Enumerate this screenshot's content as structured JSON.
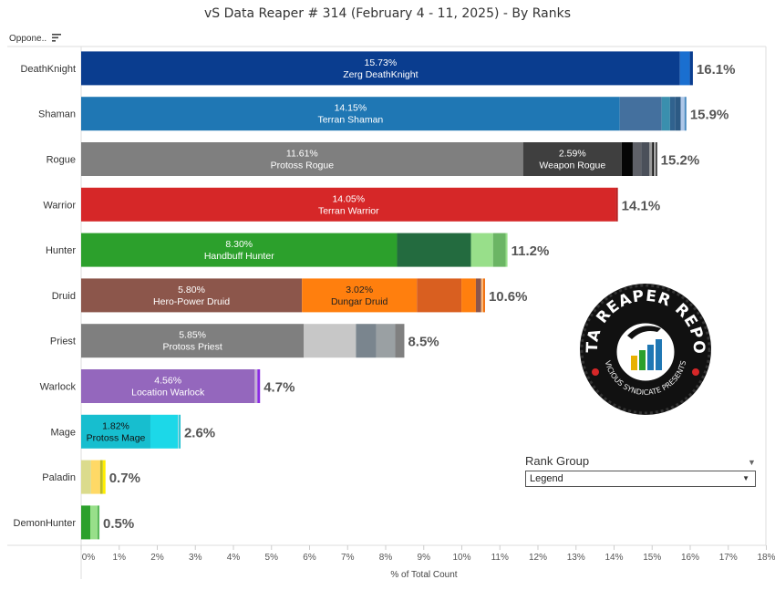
{
  "title": "vS Data Reaper #  314 (February 4 - 11, 2025) - By Ranks",
  "opponent_header": "Oppone..",
  "rank_group": {
    "label": "Rank Group",
    "selected": "Legend"
  },
  "logo": {
    "top_text": "DATA REAPER REPORT",
    "bottom_text": "VICIOUS SYNDICATE PRESENTS"
  },
  "chart_data": {
    "type": "bar",
    "orientation": "horizontal-stacked",
    "title": "vS Data Reaper #  314 (February 4 - 11, 2025) - By Ranks",
    "xlabel": "% of Total Count",
    "ylabel": "Opponent",
    "xlim": [
      0,
      18
    ],
    "xticks": [
      "0%",
      "1%",
      "2%",
      "3%",
      "4%",
      "5%",
      "6%",
      "7%",
      "8%",
      "9%",
      "10%",
      "11%",
      "12%",
      "13%",
      "14%",
      "15%",
      "16%",
      "17%",
      "18%"
    ],
    "categories": [
      "DeathKnight",
      "Shaman",
      "Rogue",
      "Warrior",
      "Hunter",
      "Druid",
      "Priest",
      "Warlock",
      "Mage",
      "Paladin",
      "DemonHunter"
    ],
    "totals": [
      "16.1%",
      "15.9%",
      "15.2%",
      "14.1%",
      "11.2%",
      "10.6%",
      "8.5%",
      "4.7%",
      "2.6%",
      "0.7%",
      "0.5%"
    ],
    "bars": [
      [
        {
          "v": 15.73,
          "c": "#0a3d8f",
          "pct": "15.73%",
          "name": "Zerg DeathKnight",
          "tc": "#fff"
        },
        {
          "v": 0.26,
          "c": "#1a6fd0"
        },
        {
          "v": 0.08,
          "c": "#0a3d8f"
        }
      ],
      [
        {
          "v": 14.15,
          "c": "#1f77b4",
          "pct": "14.15%",
          "name": "Terran Shaman",
          "tc": "#fff"
        },
        {
          "v": 1.1,
          "c": "#44709e"
        },
        {
          "v": 0.22,
          "c": "#3a8fae"
        },
        {
          "v": 0.14,
          "c": "#30628e"
        },
        {
          "v": 0.14,
          "c": "#2c5a84"
        },
        {
          "v": 0.1,
          "c": "#aec7e8"
        },
        {
          "v": 0.05,
          "c": "#4a8bc0"
        }
      ],
      [
        {
          "v": 11.61,
          "c": "#7f7f7f",
          "pct": "11.61%",
          "name": "Protoss Rogue",
          "tc": "#fff"
        },
        {
          "v": 2.59,
          "c": "#3f3f3f",
          "pct": "2.59%",
          "name": "Weapon Rogue",
          "tc": "#fff"
        },
        {
          "v": 0.29,
          "c": "#050505"
        },
        {
          "v": 0.22,
          "c": "#5f6168"
        },
        {
          "v": 0.22,
          "c": "#4b505a"
        },
        {
          "v": 0.07,
          "c": "#9a9a9a"
        },
        {
          "v": 0.05,
          "c": "#111"
        },
        {
          "v": 0.05,
          "c": "#bbb"
        },
        {
          "v": 0.03,
          "c": "#000"
        }
      ],
      [
        {
          "v": 14.05,
          "c": "#d62728",
          "pct": "14.05%",
          "name": "Terran Warrior",
          "tc": "#fff"
        },
        {
          "v": 0.05,
          "c": "#b81f20"
        }
      ],
      [
        {
          "v": 8.3,
          "c": "#2ca02c",
          "pct": "8.30%",
          "name": "Handbuff Hunter",
          "tc": "#fff"
        },
        {
          "v": 1.94,
          "c": "#236b3f"
        },
        {
          "v": 0.58,
          "c": "#98df8a"
        },
        {
          "v": 0.33,
          "c": "#6bb564"
        },
        {
          "v": 0.05,
          "c": "#98df8a"
        }
      ],
      [
        {
          "v": 5.8,
          "c": "#8c564b",
          "pct": "5.80%",
          "name": "Hero-Power Druid",
          "tc": "#fff"
        },
        {
          "v": 3.02,
          "c": "#ff7f0e",
          "pct": "3.02%",
          "name": "Dungar Druid",
          "tc": "#222"
        },
        {
          "v": 1.17,
          "c": "#d95f20"
        },
        {
          "v": 0.38,
          "c": "#ff7f0e"
        },
        {
          "v": 0.14,
          "c": "#8c564b"
        },
        {
          "v": 0.05,
          "c": "#ffbb78"
        },
        {
          "v": 0.05,
          "c": "#f07010"
        }
      ],
      [
        {
          "v": 5.85,
          "c": "#7f7f7f",
          "pct": "5.85%",
          "name": "Protoss Priest",
          "tc": "#fff"
        },
        {
          "v": 1.37,
          "c": "#c7c7c7"
        },
        {
          "v": 0.53,
          "c": "#7a858e"
        },
        {
          "v": 0.5,
          "c": "#9aa0a3"
        },
        {
          "v": 0.24,
          "c": "#808080"
        }
      ],
      [
        {
          "v": 4.56,
          "c": "#9467bd",
          "pct": "4.56%",
          "name": "Location Warlock",
          "tc": "#fff"
        },
        {
          "v": 0.07,
          "c": "#c5b0d5"
        },
        {
          "v": 0.07,
          "c": "#8a2be2"
        }
      ],
      [
        {
          "v": 1.82,
          "c": "#17becf",
          "pct": "1.82%",
          "name": "Protoss Mage",
          "tc": "#111"
        },
        {
          "v": 0.72,
          "c": "#1cd8e8"
        },
        {
          "v": 0.03,
          "c": "#9edae5"
        },
        {
          "v": 0.04,
          "c": "#17becf"
        }
      ],
      [
        {
          "v": 0.26,
          "c": "#dbdb8d"
        },
        {
          "v": 0.24,
          "c": "#ffd966"
        },
        {
          "v": 0.07,
          "c": "#bcbd22"
        },
        {
          "v": 0.07,
          "c": "#ffee00"
        }
      ],
      [
        {
          "v": 0.24,
          "c": "#2ca02c"
        },
        {
          "v": 0.19,
          "c": "#98df8a"
        },
        {
          "v": 0.05,
          "c": "#5cb85c"
        }
      ]
    ]
  }
}
